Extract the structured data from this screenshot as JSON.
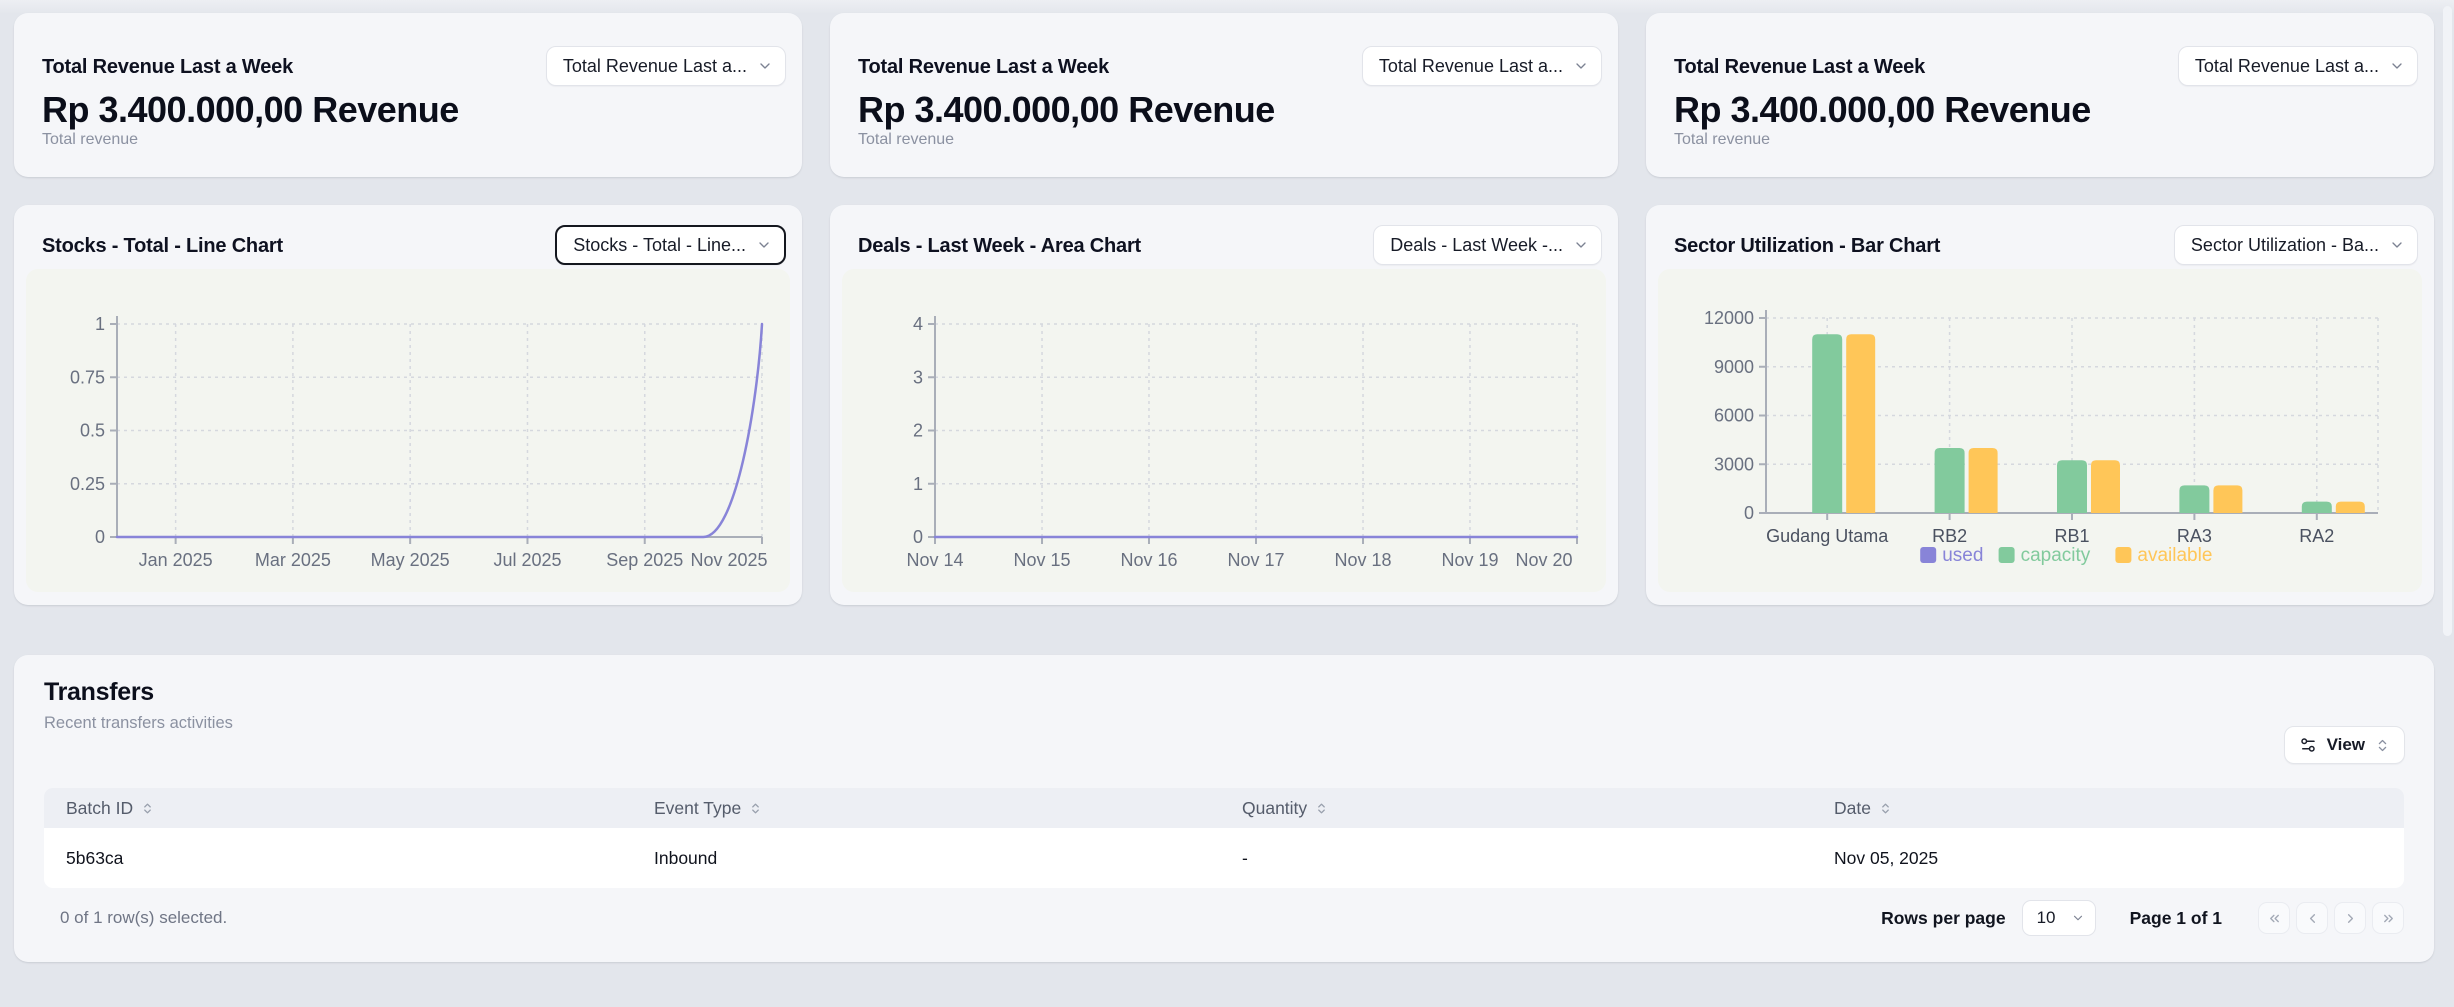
{
  "revenue_cards": [
    {
      "title": "Total Revenue Last a Week",
      "select": "Total Revenue Last a...",
      "value": "Rp 3.400.000,00 Revenue",
      "subtitle": "Total revenue"
    },
    {
      "title": "Total Revenue Last a Week",
      "select": "Total Revenue Last a...",
      "value": "Rp 3.400.000,00 Revenue",
      "subtitle": "Total revenue"
    },
    {
      "title": "Total Revenue Last a Week",
      "select": "Total Revenue Last a...",
      "value": "Rp 3.400.000,00 Revenue",
      "subtitle": "Total revenue"
    }
  ],
  "chart_cards": [
    {
      "title": "Stocks - Total - Line Chart",
      "select": "Stocks - Total - Line..."
    },
    {
      "title": "Deals - Last Week - Area Chart",
      "select": "Deals - Last Week -..."
    },
    {
      "title": "Sector Utilization - Bar Chart",
      "select": "Sector Utilization - Ba..."
    }
  ],
  "chart_data": [
    {
      "type": "line",
      "title": "Stocks - Total - Line Chart",
      "x_ticks": [
        "Jan 2025",
        "Mar 2025",
        "May 2025",
        "Jul 2025",
        "Sep 2025",
        "Nov 2025"
      ],
      "xtick_pos": [
        0.0909,
        0.2727,
        0.4545,
        0.6364,
        0.8182,
        1
      ],
      "y_ticks": [
        "0",
        "0.25",
        "0.5",
        "0.75",
        "1"
      ],
      "ylim": [
        0,
        1
      ],
      "grid": "dashed",
      "series": [
        {
          "name": "total",
          "color": "#8884d8",
          "points_x_frac": [
            0,
            0.909,
            1
          ],
          "values": [
            0,
            0,
            1
          ]
        }
      ]
    },
    {
      "type": "area",
      "title": "Deals - Last Week - Area Chart",
      "x_ticks": [
        "Nov 14",
        "Nov 15",
        "Nov 16",
        "Nov 17",
        "Nov 18",
        "Nov 19",
        "Nov 20"
      ],
      "xtick_pos": [
        0,
        0.1667,
        0.3333,
        0.5,
        0.6667,
        0.8333,
        1
      ],
      "y_ticks": [
        "0",
        "1",
        "2",
        "3",
        "4"
      ],
      "ylim": [
        0,
        4
      ],
      "grid": "dashed",
      "series": [
        {
          "name": "deals",
          "color": "#8884d8",
          "values": [
            0,
            0,
            0,
            0,
            0,
            0,
            0
          ]
        }
      ]
    },
    {
      "type": "bar",
      "title": "Sector Utilization - Bar Chart",
      "categories": [
        "Gudang Utama",
        "RB2",
        "RB1",
        "RA3",
        "RA2"
      ],
      "y_ticks": [
        "0",
        "3000",
        "6000",
        "9000",
        "12000"
      ],
      "ylim": [
        0,
        12000
      ],
      "grid": "dashed",
      "legend_position": "bottom",
      "legend": [
        "used",
        "capacity",
        "available"
      ],
      "series": [
        {
          "name": "used",
          "color": "#8884d8",
          "values": [
            0,
            0,
            0,
            0,
            0
          ]
        },
        {
          "name": "capacity",
          "color": "#82ca9d",
          "values": [
            11000,
            4000,
            3250,
            1700,
            700
          ]
        },
        {
          "name": "available",
          "color": "#ffc658",
          "values": [
            11000,
            4000,
            3250,
            1700,
            700
          ]
        }
      ]
    }
  ],
  "transfers": {
    "title": "Transfers",
    "subtitle": "Recent transfers activities",
    "view_button": "View",
    "columns": [
      "Batch ID",
      "Event Type",
      "Quantity",
      "Date"
    ],
    "rows": [
      [
        "5b63ca",
        "Inbound",
        "-",
        "Nov 05, 2025"
      ]
    ],
    "footer": {
      "selected": "0 of 1 row(s) selected.",
      "rows_per_page_label": "Rows per page",
      "rows_per_page_value": "10",
      "page": "Page 1 of 1"
    }
  },
  "colors": {
    "accent_purple": "#8884d8",
    "green": "#82ca9d",
    "yellow": "#ffc658",
    "page_bg": "#e3e6ec"
  }
}
